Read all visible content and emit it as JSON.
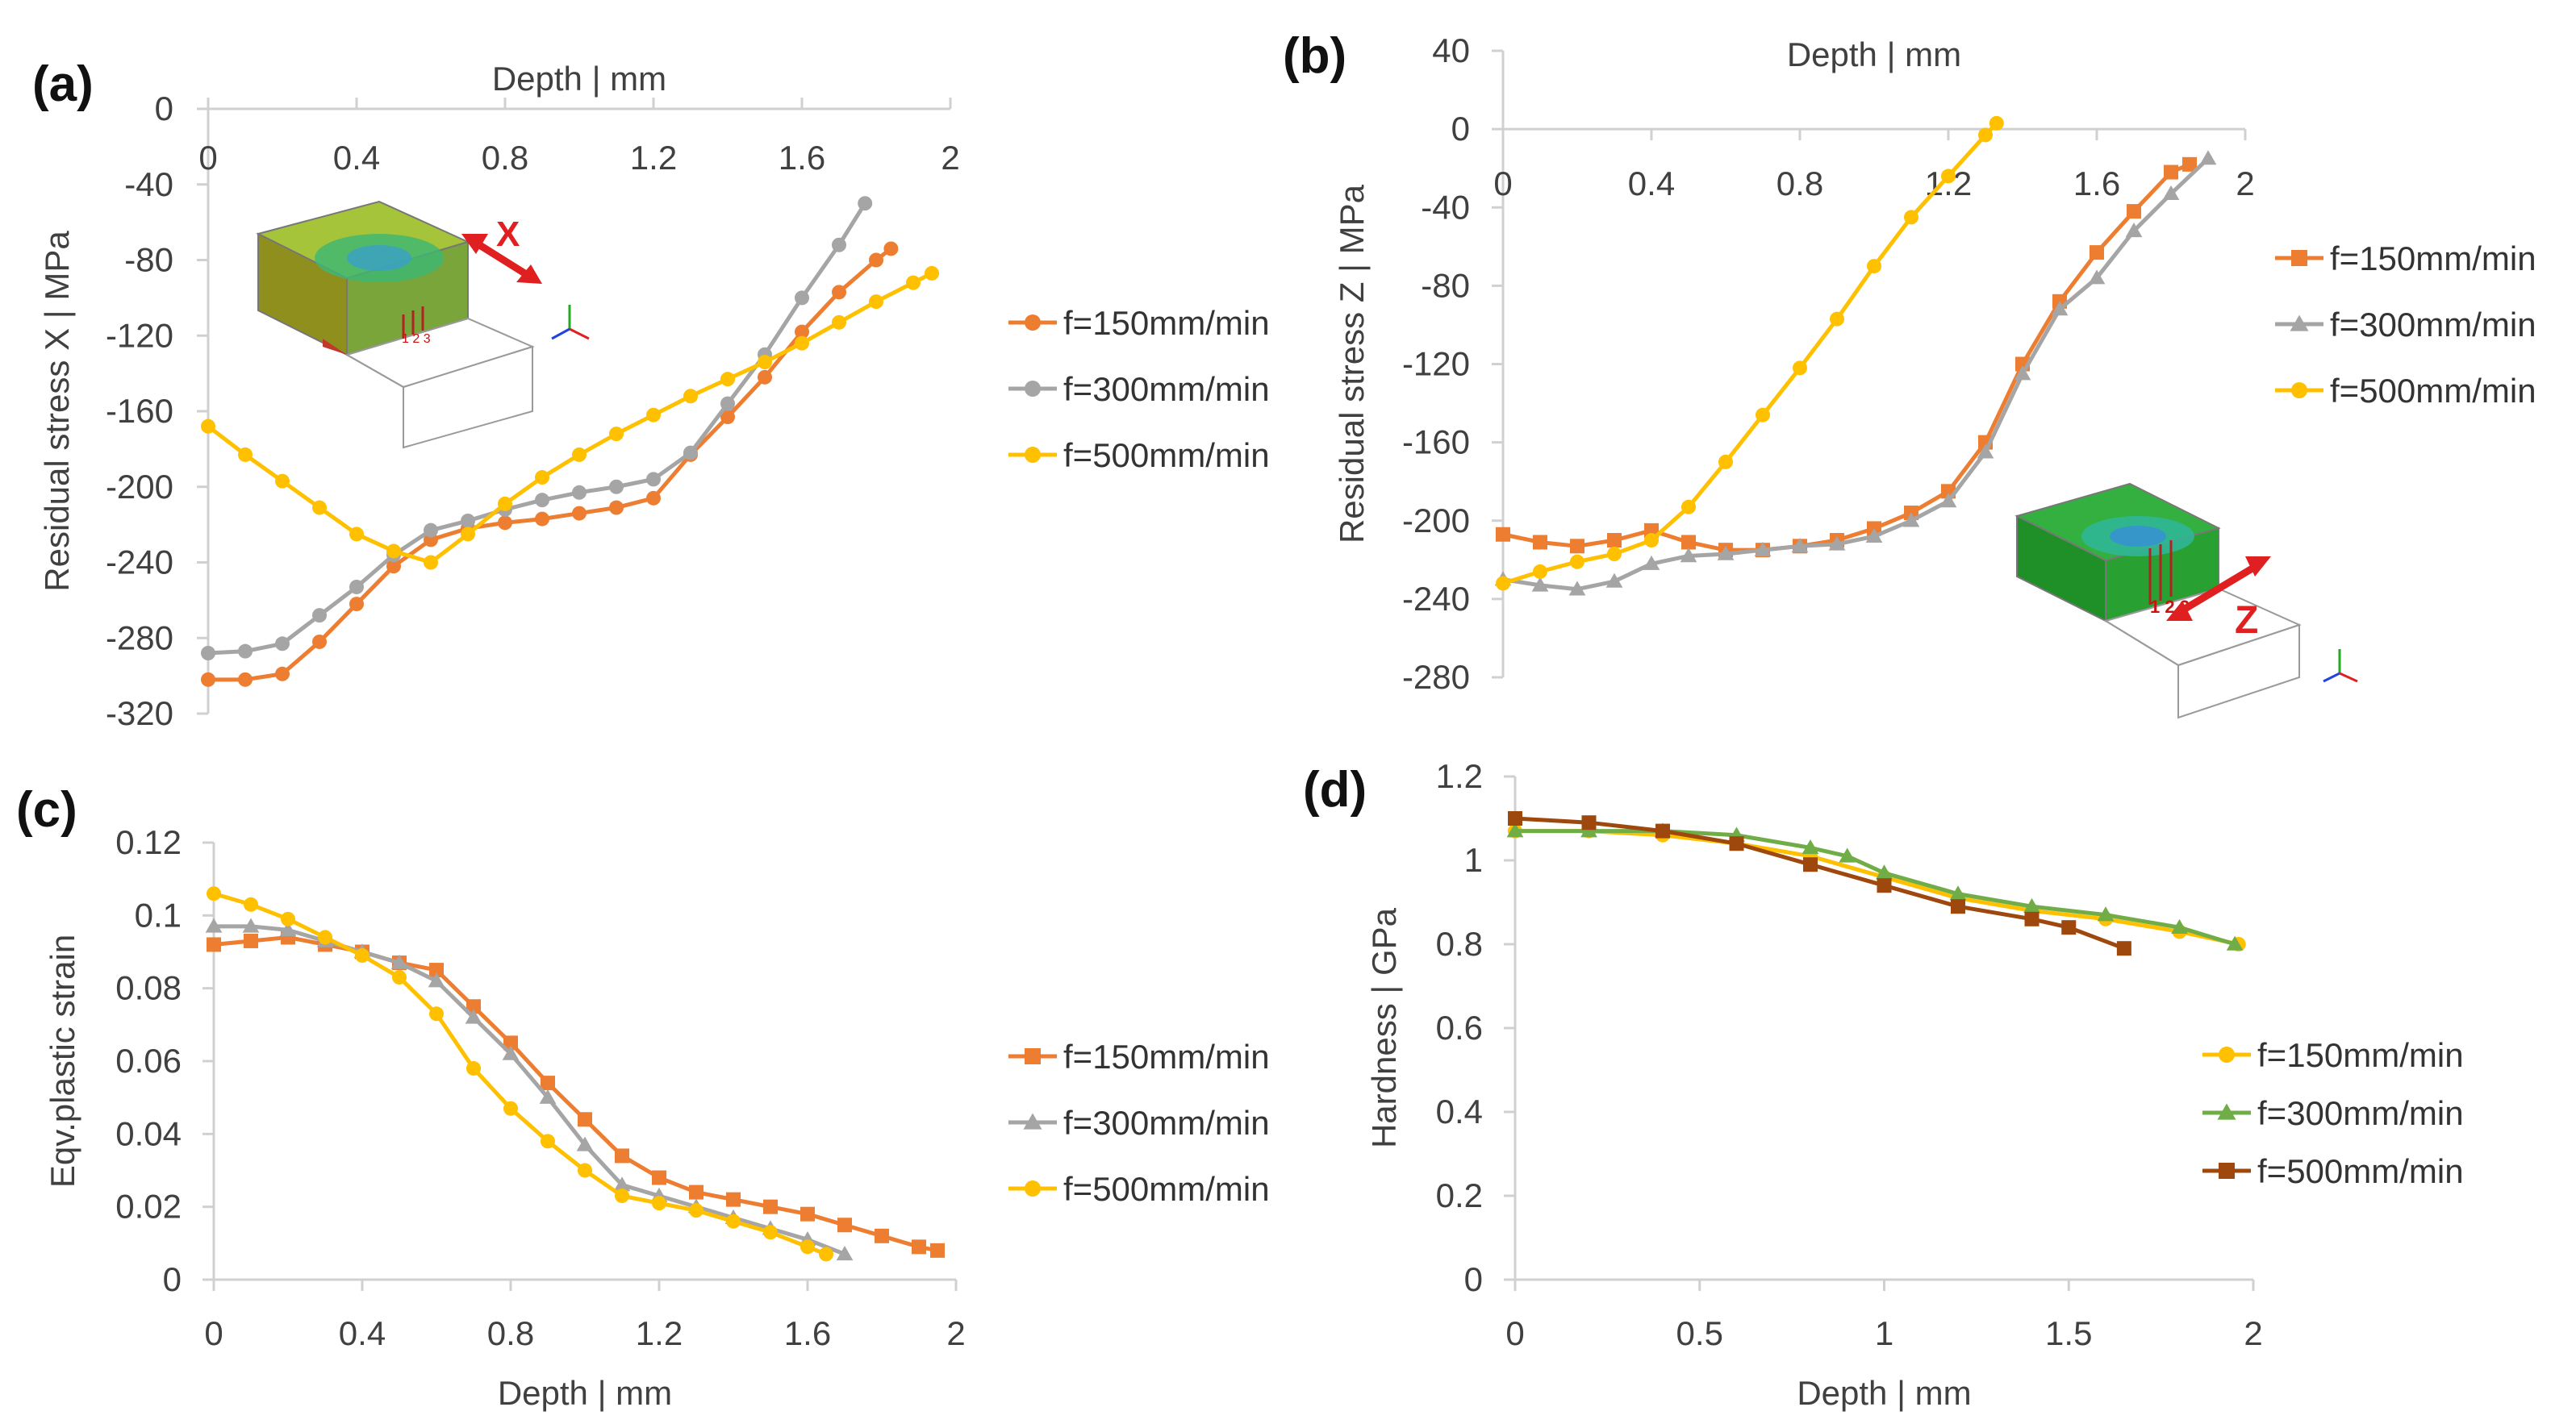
{
  "colors": {
    "orange": "#ED7D31",
    "gray": "#A5A5A5",
    "gold": "#FFC000",
    "yellow": "#FFC000",
    "green": "#70AD47",
    "brown": "#9E480E"
  },
  "insets": {
    "a": {
      "arrow_label": "X",
      "point_labels": "1 2 3"
    },
    "b": {
      "arrow_label": "Z",
      "point_labels": "1 2 3"
    }
  },
  "chart_data": [
    {
      "id": "a",
      "panel_label": "(a)",
      "type": "line",
      "title": "",
      "xlabel": "Depth | mm",
      "ylabel": "Residual stress X | MPa",
      "xlim": [
        0,
        2
      ],
      "ylim": [
        -320,
        0
      ],
      "x_ticks": [
        "0",
        "0.4",
        "0.8",
        "1.2",
        "1.6",
        "2"
      ],
      "y_ticks": [
        "0",
        "-40",
        "-80",
        "-120",
        "-160",
        "-200",
        "-240",
        "-280",
        "-320"
      ],
      "legend": "right",
      "series": [
        {
          "name": "f=150mm/min",
          "color": "#ED7D31",
          "marker": "circle",
          "x": [
            0,
            0.1,
            0.2,
            0.3,
            0.4,
            0.5,
            0.6,
            0.7,
            0.8,
            0.9,
            1.0,
            1.1,
            1.2,
            1.3,
            1.4,
            1.5,
            1.6,
            1.7,
            1.8,
            1.84
          ],
          "y": [
            -302,
            -302,
            -299,
            -282,
            -262,
            -242,
            -228,
            -222,
            -219,
            -217,
            -214,
            -211,
            -206,
            -183,
            -163,
            -142,
            -118,
            -97,
            -80,
            -74
          ]
        },
        {
          "name": "f=300mm/min",
          "color": "#A5A5A5",
          "marker": "circle",
          "x": [
            0,
            0.1,
            0.2,
            0.3,
            0.4,
            0.5,
            0.6,
            0.7,
            0.8,
            0.9,
            1.0,
            1.1,
            1.2,
            1.3,
            1.4,
            1.5,
            1.6,
            1.7,
            1.77
          ],
          "y": [
            -288,
            -287,
            -283,
            -268,
            -253,
            -236,
            -223,
            -218,
            -212,
            -207,
            -203,
            -200,
            -196,
            -182,
            -156,
            -130,
            -100,
            -72,
            -50
          ]
        },
        {
          "name": "f=500mm/min",
          "color": "#FFC000",
          "marker": "circle",
          "x": [
            0,
            0.1,
            0.2,
            0.3,
            0.4,
            0.5,
            0.6,
            0.7,
            0.8,
            0.9,
            1.0,
            1.1,
            1.2,
            1.3,
            1.4,
            1.5,
            1.6,
            1.7,
            1.8,
            1.9,
            1.95
          ],
          "y": [
            -168,
            -183,
            -197,
            -211,
            -225,
            -234,
            -240,
            -225,
            -209,
            -195,
            -183,
            -172,
            -162,
            -152,
            -143,
            -134,
            -124,
            -113,
            -102,
            -92,
            -87
          ]
        }
      ]
    },
    {
      "id": "b",
      "panel_label": "(b)",
      "type": "line",
      "title": "",
      "xlabel": "Depth | mm",
      "ylabel": "Residual stress Z | MPa",
      "xlim": [
        0,
        2
      ],
      "ylim": [
        -280,
        40
      ],
      "x_ticks": [
        "0",
        "0.4",
        "0.8",
        "1.2",
        "1.6",
        "2"
      ],
      "y_ticks": [
        "40",
        "0",
        "-40",
        "-80",
        "-120",
        "-160",
        "-200",
        "-240",
        "-280"
      ],
      "legend": "right",
      "series": [
        {
          "name": "f=150mm/min",
          "color": "#ED7D31",
          "marker": "square",
          "x": [
            0,
            0.1,
            0.2,
            0.3,
            0.4,
            0.5,
            0.6,
            0.7,
            0.8,
            0.9,
            1.0,
            1.1,
            1.2,
            1.3,
            1.4,
            1.5,
            1.6,
            1.7,
            1.8,
            1.85
          ],
          "y": [
            -207,
            -211,
            -213,
            -210,
            -205,
            -211,
            -215,
            -215,
            -213,
            -210,
            -204,
            -196,
            -185,
            -160,
            -120,
            -88,
            -63,
            -42,
            -22,
            -18
          ]
        },
        {
          "name": "f=300mm/min",
          "color": "#A5A5A5",
          "marker": "triangle",
          "x": [
            0,
            0.1,
            0.2,
            0.3,
            0.4,
            0.5,
            0.6,
            0.7,
            0.8,
            0.9,
            1.0,
            1.1,
            1.2,
            1.3,
            1.4,
            1.5,
            1.6,
            1.7,
            1.8,
            1.9
          ],
          "y": [
            -230,
            -233,
            -235,
            -231,
            -222,
            -218,
            -217,
            -215,
            -213,
            -212,
            -208,
            -200,
            -190,
            -165,
            -125,
            -92,
            -76,
            -52,
            -33,
            -15
          ]
        },
        {
          "name": "f=500mm/min",
          "color": "#FFC000",
          "marker": "circle",
          "x": [
            0,
            0.1,
            0.2,
            0.3,
            0.4,
            0.5,
            0.6,
            0.7,
            0.8,
            0.9,
            1.0,
            1.1,
            1.2,
            1.3,
            1.33
          ],
          "y": [
            -232,
            -226,
            -221,
            -217,
            -210,
            -193,
            -170,
            -146,
            -122,
            -97,
            -70,
            -45,
            -24,
            -3,
            3
          ]
        }
      ]
    },
    {
      "id": "c",
      "panel_label": "(c)",
      "type": "line",
      "title": "",
      "xlabel": "Depth | mm",
      "ylabel": "Eqv.plastic strain",
      "xlim": [
        0,
        2
      ],
      "ylim": [
        0,
        0.12
      ],
      "x_ticks": [
        "0",
        "0.4",
        "0.8",
        "1.2",
        "1.6",
        "2"
      ],
      "y_ticks": [
        "0.12",
        "0.1",
        "0.08",
        "0.06",
        "0.04",
        "0.02",
        "0"
      ],
      "legend": "right",
      "series": [
        {
          "name": "f=150mm/min",
          "color": "#ED7D31",
          "marker": "square",
          "x": [
            0,
            0.1,
            0.2,
            0.3,
            0.4,
            0.5,
            0.6,
            0.7,
            0.8,
            0.9,
            1.0,
            1.1,
            1.2,
            1.3,
            1.4,
            1.5,
            1.6,
            1.7,
            1.8,
            1.9,
            1.95
          ],
          "y": [
            0.092,
            0.093,
            0.094,
            0.092,
            0.09,
            0.087,
            0.085,
            0.075,
            0.065,
            0.054,
            0.044,
            0.034,
            0.028,
            0.024,
            0.022,
            0.02,
            0.018,
            0.015,
            0.012,
            0.009,
            0.008
          ]
        },
        {
          "name": "f=300mm/min",
          "color": "#A5A5A5",
          "marker": "triangle",
          "x": [
            0,
            0.1,
            0.2,
            0.3,
            0.4,
            0.5,
            0.6,
            0.7,
            0.8,
            0.9,
            1.0,
            1.1,
            1.2,
            1.3,
            1.4,
            1.5,
            1.6,
            1.7
          ],
          "y": [
            0.097,
            0.097,
            0.096,
            0.093,
            0.09,
            0.087,
            0.082,
            0.072,
            0.062,
            0.05,
            0.037,
            0.026,
            0.023,
            0.02,
            0.017,
            0.014,
            0.011,
            0.007
          ]
        },
        {
          "name": "f=500mm/min",
          "color": "#FFC000",
          "marker": "circle",
          "x": [
            0,
            0.1,
            0.2,
            0.3,
            0.4,
            0.5,
            0.6,
            0.7,
            0.8,
            0.9,
            1.0,
            1.1,
            1.2,
            1.3,
            1.4,
            1.5,
            1.6,
            1.65
          ],
          "y": [
            0.106,
            0.103,
            0.099,
            0.094,
            0.089,
            0.083,
            0.073,
            0.058,
            0.047,
            0.038,
            0.03,
            0.023,
            0.021,
            0.019,
            0.016,
            0.013,
            0.009,
            0.007
          ]
        }
      ]
    },
    {
      "id": "d",
      "panel_label": "(d)",
      "type": "line",
      "title": "",
      "xlabel": "Depth | mm",
      "ylabel": "Hardness | GPa",
      "xlim": [
        0,
        2
      ],
      "ylim": [
        0,
        1.2
      ],
      "x_ticks": [
        "0",
        "0.5",
        "1",
        "1.5",
        "2"
      ],
      "y_ticks": [
        "1.2",
        "1",
        "0.8",
        "0.6",
        "0.4",
        "0.2",
        "0"
      ],
      "legend": "right",
      "series": [
        {
          "name": "f=150mm/min",
          "color": "#FFC000",
          "marker": "circle",
          "x": [
            0,
            0.2,
            0.4,
            0.6,
            0.8,
            1.0,
            1.2,
            1.4,
            1.6,
            1.8,
            1.96
          ],
          "y": [
            1.07,
            1.07,
            1.06,
            1.04,
            1.01,
            0.96,
            0.91,
            0.88,
            0.86,
            0.83,
            0.8
          ]
        },
        {
          "name": "f=300mm/min",
          "color": "#70AD47",
          "marker": "triangle",
          "x": [
            0,
            0.2,
            0.4,
            0.6,
            0.8,
            0.9,
            1.0,
            1.2,
            1.4,
            1.6,
            1.8,
            1.95
          ],
          "y": [
            1.07,
            1.07,
            1.07,
            1.06,
            1.03,
            1.01,
            0.97,
            0.92,
            0.89,
            0.87,
            0.84,
            0.8
          ]
        },
        {
          "name": "f=500mm/min",
          "color": "#9E480E",
          "marker": "square",
          "x": [
            0,
            0.2,
            0.4,
            0.6,
            0.8,
            1.0,
            1.2,
            1.4,
            1.5,
            1.65
          ],
          "y": [
            1.1,
            1.09,
            1.07,
            1.04,
            0.99,
            0.94,
            0.89,
            0.86,
            0.84,
            0.79
          ]
        }
      ]
    }
  ]
}
